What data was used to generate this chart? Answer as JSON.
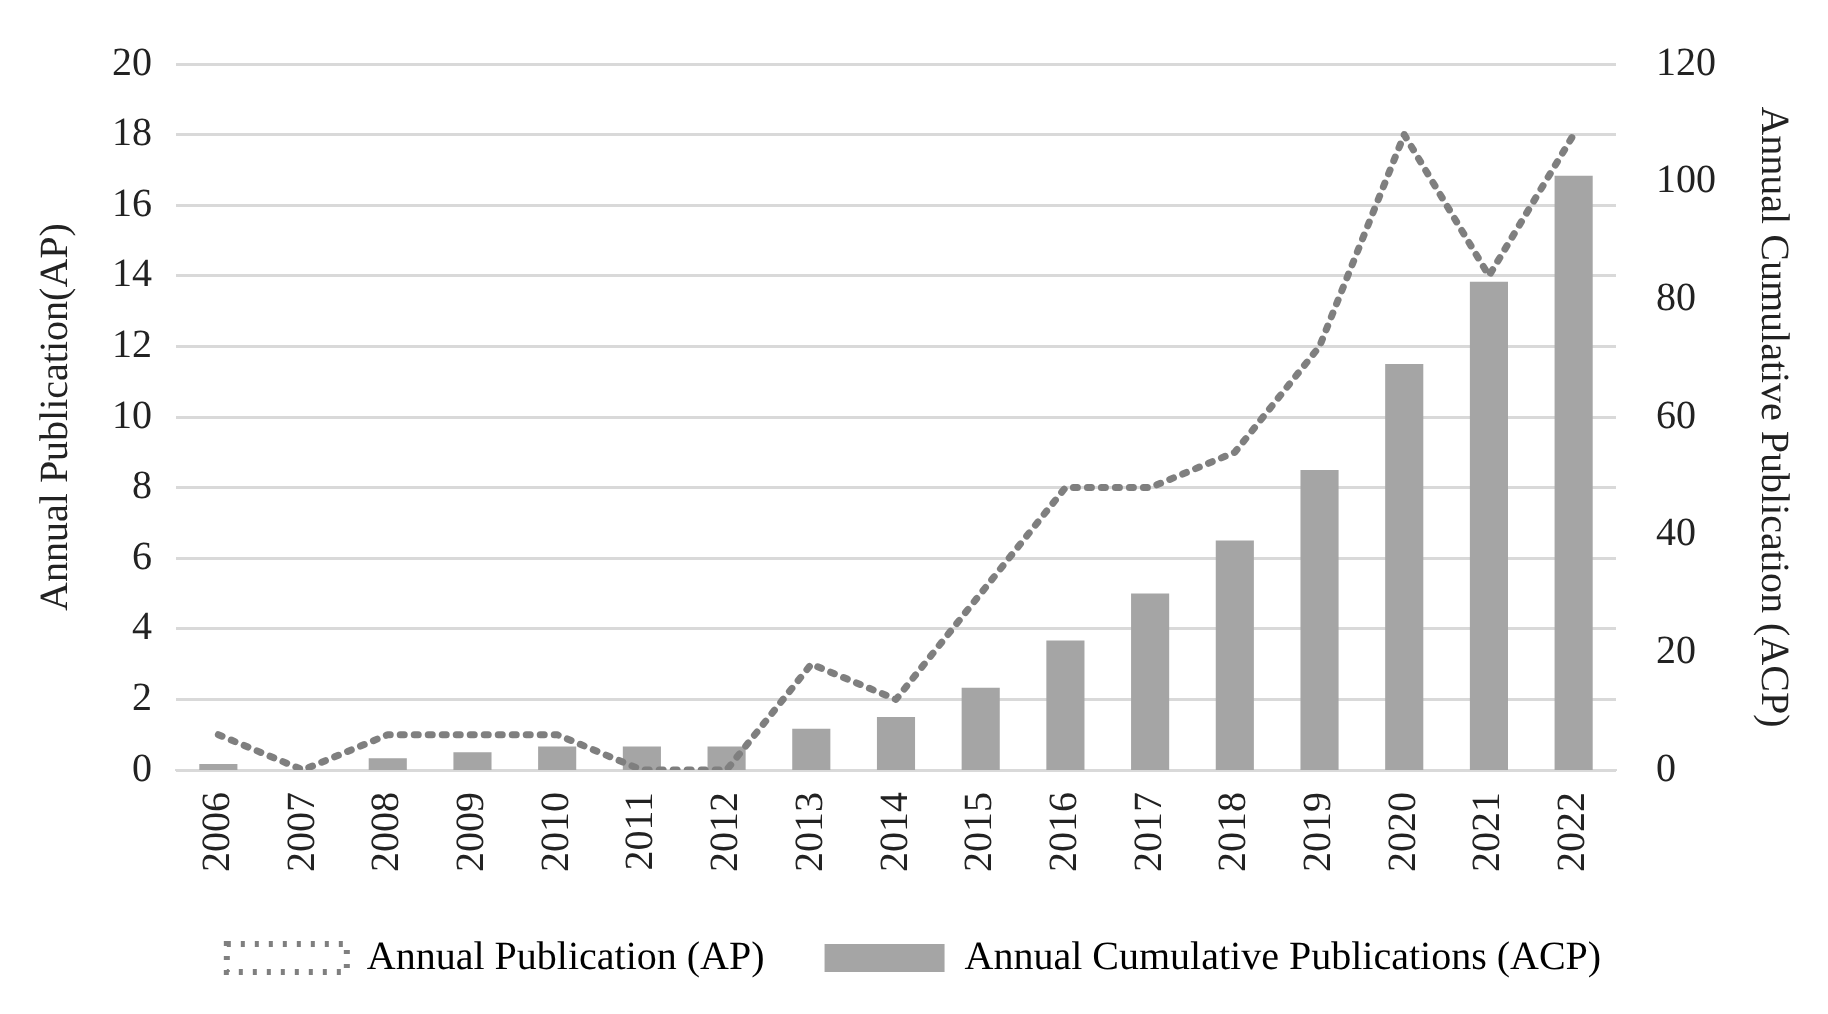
{
  "chart_data": {
    "type": "bar",
    "categories": [
      "2006",
      "2007",
      "2008",
      "2009",
      "2010",
      "2011",
      "2012",
      "2013",
      "2014",
      "2015",
      "2016",
      "2017",
      "2018",
      "2019",
      "2020",
      "2021",
      "2022"
    ],
    "ylabel": "Annual Publication(AP)",
    "y2label": "Annual Cumulative Publication (ACP)",
    "series": [
      {
        "name": "Annual Publication (AP)",
        "type": "line",
        "color": "#7f7f7f",
        "line_style": "dotted",
        "marker": "none",
        "values": [
          1,
          0,
          1,
          1,
          1,
          0,
          0,
          3,
          2,
          5,
          8,
          8,
          9,
          12,
          18,
          14,
          18
        ]
      },
      {
        "name": "Annual Cumulative Publications (ACP)",
        "axis": "y2",
        "color": "#a5a5a5",
        "values": [
          1,
          null,
          2,
          3,
          4,
          4,
          4,
          7,
          9,
          14,
          22,
          30,
          39,
          51,
          69,
          83,
          101
        ]
      }
    ],
    "ylim": [
      0,
      20
    ],
    "yticks": [
      0,
      2,
      4,
      6,
      8,
      10,
      12,
      14,
      16,
      18,
      20
    ],
    "y2lim": [
      0,
      120
    ],
    "y2ticks": [
      0,
      20,
      40,
      60,
      80,
      100,
      120
    ],
    "grid": "y",
    "legend": "bottom"
  }
}
